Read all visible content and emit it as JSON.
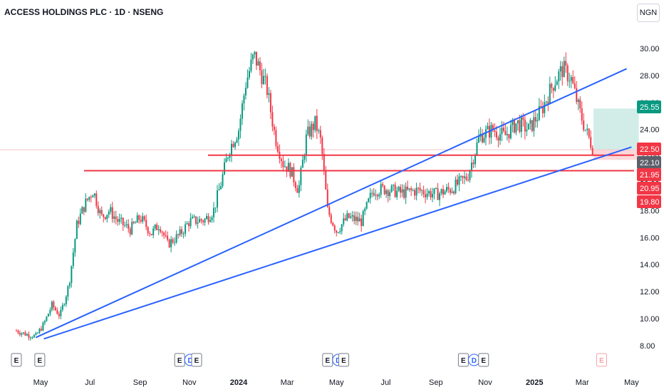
{
  "header": {
    "symbol_title": "ACCESS HOLDINGS PLC · 1D · NSENG",
    "currency": "NGN"
  },
  "chart_data": {
    "type": "candlestick",
    "y_ticks": [
      "30.00",
      "28.00",
      "26.00",
      "24.00",
      "22.00",
      "20.00",
      "18.00",
      "16.00",
      "14.00",
      "12.00",
      "10.00",
      "8.00"
    ],
    "ylim": [
      7.8,
      31.5
    ],
    "x_ticks": [
      {
        "label": "May",
        "date": "2023-05-01",
        "bold": false
      },
      {
        "label": "Jul",
        "date": "2023-07-01",
        "bold": false
      },
      {
        "label": "Sep",
        "date": "2023-09-01",
        "bold": false
      },
      {
        "label": "Nov",
        "date": "2023-11-01",
        "bold": false
      },
      {
        "label": "2024",
        "date": "2024-01-01",
        "bold": true
      },
      {
        "label": "Mar",
        "date": "2024-03-01",
        "bold": false
      },
      {
        "label": "May",
        "date": "2024-05-01",
        "bold": false
      },
      {
        "label": "Jul",
        "date": "2024-07-01",
        "bold": false
      },
      {
        "label": "Sep",
        "date": "2024-09-01",
        "bold": false
      },
      {
        "label": "Nov",
        "date": "2024-11-01",
        "bold": false
      },
      {
        "label": "2025",
        "date": "2025-01-01",
        "bold": true
      },
      {
        "label": "Mar",
        "date": "2025-03-01",
        "bold": false
      },
      {
        "label": "May",
        "date": "2025-05-01",
        "bold": false
      }
    ],
    "price_path": [
      [
        "2023-04-01",
        9.1
      ],
      [
        "2023-04-15",
        8.8
      ],
      [
        "2023-04-25",
        8.7
      ],
      [
        "2023-05-05",
        9.6
      ],
      [
        "2023-05-15",
        11.0
      ],
      [
        "2023-05-25",
        10.2
      ],
      [
        "2023-06-05",
        12.5
      ],
      [
        "2023-06-15",
        17.0
      ],
      [
        "2023-06-25",
        18.5
      ],
      [
        "2023-07-05",
        19.5
      ],
      [
        "2023-07-15",
        17.5
      ],
      [
        "2023-07-25",
        18.0
      ],
      [
        "2023-08-05",
        17.2
      ],
      [
        "2023-08-20",
        16.6
      ],
      [
        "2023-09-01",
        17.5
      ],
      [
        "2023-09-15",
        16.3
      ],
      [
        "2023-09-25",
        17.0
      ],
      [
        "2023-10-05",
        15.5
      ],
      [
        "2023-10-20",
        16.2
      ],
      [
        "2023-11-01",
        17.2
      ],
      [
        "2023-11-20",
        17.3
      ],
      [
        "2023-12-01",
        18.0
      ],
      [
        "2023-12-10",
        20.0
      ],
      [
        "2023-12-20",
        22.5
      ],
      [
        "2024-01-01",
        24.0
      ],
      [
        "2024-01-10",
        27.5
      ],
      [
        "2024-01-20",
        29.5
      ],
      [
        "2024-01-28",
        28.3
      ],
      [
        "2024-02-05",
        27.0
      ],
      [
        "2024-02-15",
        23.5
      ],
      [
        "2024-02-25",
        21.5
      ],
      [
        "2024-03-05",
        21.0
      ],
      [
        "2024-03-15",
        19.5
      ],
      [
        "2024-03-25",
        23.5
      ],
      [
        "2024-04-05",
        24.5
      ],
      [
        "2024-04-12",
        23.0
      ],
      [
        "2024-04-20",
        18.0
      ],
      [
        "2024-05-01",
        16.5
      ],
      [
        "2024-05-15",
        17.5
      ],
      [
        "2024-06-01",
        17.2
      ],
      [
        "2024-06-15",
        19.5
      ],
      [
        "2024-07-01",
        19.6
      ],
      [
        "2024-07-20",
        19.3
      ],
      [
        "2024-08-10",
        19.5
      ],
      [
        "2024-09-01",
        19.2
      ],
      [
        "2024-09-20",
        19.6
      ],
      [
        "2024-10-10",
        20.5
      ],
      [
        "2024-10-25",
        23.5
      ],
      [
        "2024-11-10",
        24.0
      ],
      [
        "2024-11-25",
        23.5
      ],
      [
        "2024-12-10",
        24.5
      ],
      [
        "2024-12-25",
        24.0
      ],
      [
        "2025-01-10",
        25.5
      ],
      [
        "2025-01-25",
        27.5
      ],
      [
        "2025-02-05",
        28.5
      ],
      [
        "2025-02-15",
        27.8
      ],
      [
        "2025-02-25",
        25.5
      ],
      [
        "2025-03-05",
        24.0
      ],
      [
        "2025-03-15",
        22.5
      ]
    ],
    "horizontal_lines": [
      {
        "price": 22.1,
        "color": "#f23645"
      },
      {
        "price": 20.95,
        "color": "#f23645"
      }
    ],
    "trend_lines": [
      {
        "from": [
          "2023-04-25",
          8.6
        ],
        "to": [
          "2025-04-25",
          28.5
        ],
        "color": "#2962ff"
      },
      {
        "from": [
          "2023-05-05",
          8.5
        ],
        "to": [
          "2025-05-01",
          22.7
        ],
        "color": "#2962ff"
      }
    ],
    "position_zone": {
      "start": "2025-03-15",
      "end": "2025-05-10",
      "entry": 22.5,
      "target": 25.55,
      "stop": 21.75
    },
    "price_tags": [
      {
        "value": "25.55",
        "color": "#089981"
      },
      {
        "value": "22.50",
        "color": "#f23645"
      },
      {
        "value": "22.10",
        "color": "#5d606b"
      },
      {
        "value": "21.95",
        "color": "#f23645"
      },
      {
        "value": "20.95",
        "color": "#f23645"
      },
      {
        "value": "19.80",
        "color": "#f23645"
      }
    ],
    "events": [
      {
        "date": "2023-04-01",
        "labels": [
          "E"
        ]
      },
      {
        "date": "2023-04-30",
        "labels": [
          "E"
        ]
      },
      {
        "date": "2023-10-20",
        "labels": [
          "E",
          "D"
        ]
      },
      {
        "date": "2023-11-10",
        "labels": [
          "E"
        ]
      },
      {
        "date": "2024-04-20",
        "labels": [
          "E",
          "D"
        ]
      },
      {
        "date": "2024-05-10",
        "labels": [
          "E"
        ]
      },
      {
        "date": "2024-10-05",
        "labels": [
          "E",
          "D"
        ]
      },
      {
        "date": "2024-10-30",
        "labels": [
          "E"
        ]
      },
      {
        "date": "2025-03-25",
        "labels": [
          "E"
        ]
      }
    ]
  }
}
